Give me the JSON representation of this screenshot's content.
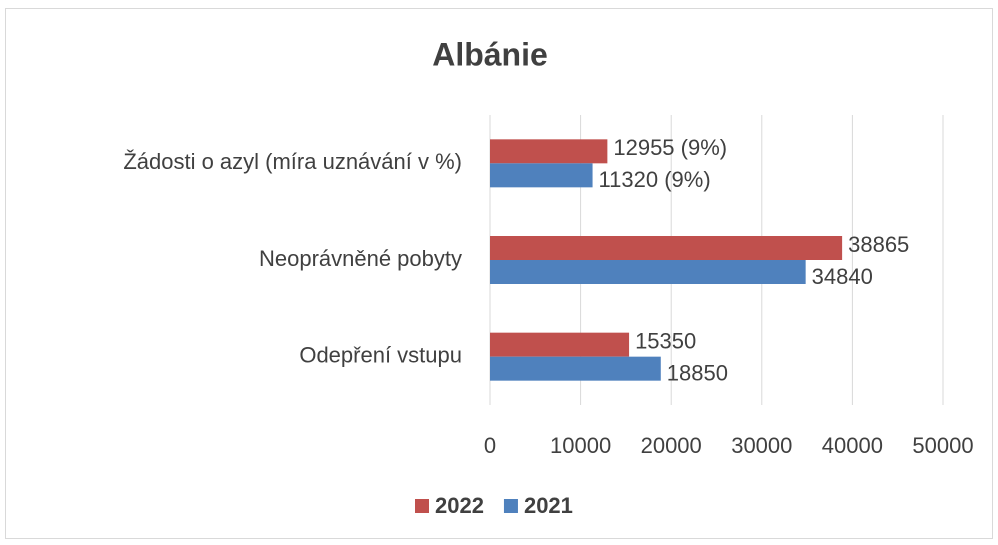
{
  "chart_data": {
    "type": "bar",
    "orientation": "horizontal",
    "title": "Albánie",
    "categories": [
      "Žádosti o azyl (míra uznávání v %)",
      "Neoprávněné pobyty",
      "Odepření vstupu"
    ],
    "series": [
      {
        "name": "2022",
        "color": "#c0504d",
        "values": [
          12955,
          38865,
          15350
        ],
        "value_labels": [
          "12955 (9%)",
          "38865",
          "15350"
        ]
      },
      {
        "name": "2021",
        "color": "#4f81bd",
        "values": [
          11320,
          34840,
          18850
        ],
        "value_labels": [
          "11320 (9%)",
          "34840",
          "18850"
        ]
      }
    ],
    "xlim": [
      0,
      50000
    ],
    "xticks": [
      0,
      10000,
      20000,
      30000,
      40000,
      50000
    ],
    "grid": true,
    "legend": "bottom"
  }
}
